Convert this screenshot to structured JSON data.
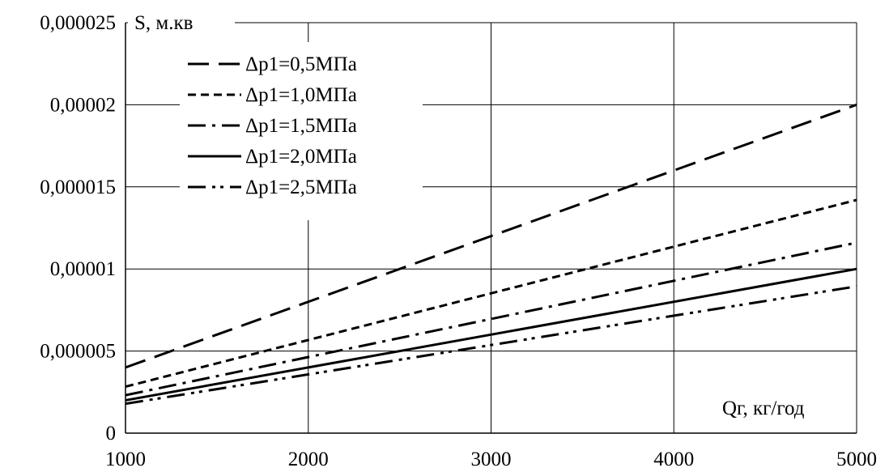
{
  "chart_data": {
    "type": "line",
    "xlabel": "Qг, кг/год",
    "ylabel": "S, м.кв",
    "xlim": [
      1000,
      5000
    ],
    "ylim": [
      0,
      2.5e-05
    ],
    "x_ticks": [
      1000,
      2000,
      3000,
      4000,
      5000
    ],
    "x_tick_labels": [
      "1000",
      "2000",
      "3000",
      "4000",
      "5000"
    ],
    "y_ticks": [
      0,
      5e-06,
      1e-05,
      1.5e-05,
      2e-05,
      2.5e-05
    ],
    "y_tick_labels": [
      "0",
      "0,000005",
      "0,00001",
      "0,000015",
      "0,00002",
      "0,000025"
    ],
    "grid": true,
    "legend_position": "top-left",
    "series": [
      {
        "name": "Δp1=0,5МПа",
        "dash": "long-dash",
        "x": [
          1000,
          5000
        ],
        "y": [
          4e-06,
          2e-05
        ]
      },
      {
        "name": "Δp1=1,0МПа",
        "dash": "short-dash",
        "x": [
          1000,
          5000
        ],
        "y": [
          2.83e-06,
          1.42e-05
        ]
      },
      {
        "name": "Δp1=1,5МПа",
        "dash": "dash-dot",
        "x": [
          1000,
          5000
        ],
        "y": [
          2.31e-06,
          1.16e-05
        ]
      },
      {
        "name": "Δp1=2,0МПа",
        "dash": "solid",
        "x": [
          1000,
          5000
        ],
        "y": [
          2e-06,
          1e-05
        ]
      },
      {
        "name": "Δp1=2,5МПа",
        "dash": "dash-dot-dot",
        "x": [
          1000,
          5000
        ],
        "y": [
          1.79e-06,
          8.94e-06
        ]
      }
    ]
  }
}
